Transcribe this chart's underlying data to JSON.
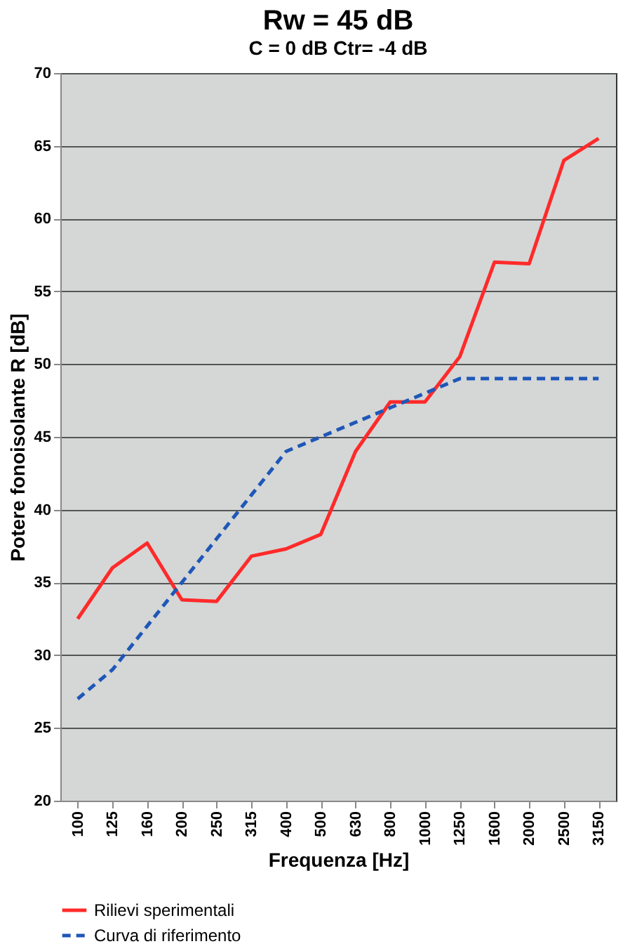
{
  "chart_data": {
    "type": "line",
    "title": "Rw = 45 dB",
    "subtitle": "C = 0 dB   Ctr= -4 dB",
    "xlabel": "Frequenza [Hz]",
    "ylabel": "Potere fonoisolante R [dB]",
    "categories": [
      "100",
      "125",
      "160",
      "200",
      "250",
      "315",
      "400",
      "500",
      "630",
      "800",
      "1000",
      "1250",
      "1600",
      "2000",
      "2500",
      "3150"
    ],
    "series": [
      {
        "name": "Rilievi sperimentali",
        "color": "#ff2a2a",
        "line_style": "solid",
        "values": [
          32.5,
          36.0,
          37.7,
          33.8,
          33.7,
          36.8,
          37.3,
          38.3,
          44.0,
          47.4,
          47.4,
          50.5,
          57.0,
          56.9,
          64.0,
          65.5
        ]
      },
      {
        "name": "Curva di riferimento",
        "color": "#1f57b8",
        "line_style": "dashed",
        "values": [
          27,
          29,
          32,
          35,
          38,
          41,
          44,
          45,
          46,
          47,
          48,
          49,
          49,
          49,
          49,
          49
        ]
      }
    ],
    "ylim": [
      20,
      70
    ],
    "yticks": [
      20,
      25,
      30,
      35,
      40,
      45,
      50,
      55,
      60,
      65,
      70
    ],
    "grid": "y",
    "legend": "bottom",
    "marker": "none"
  }
}
